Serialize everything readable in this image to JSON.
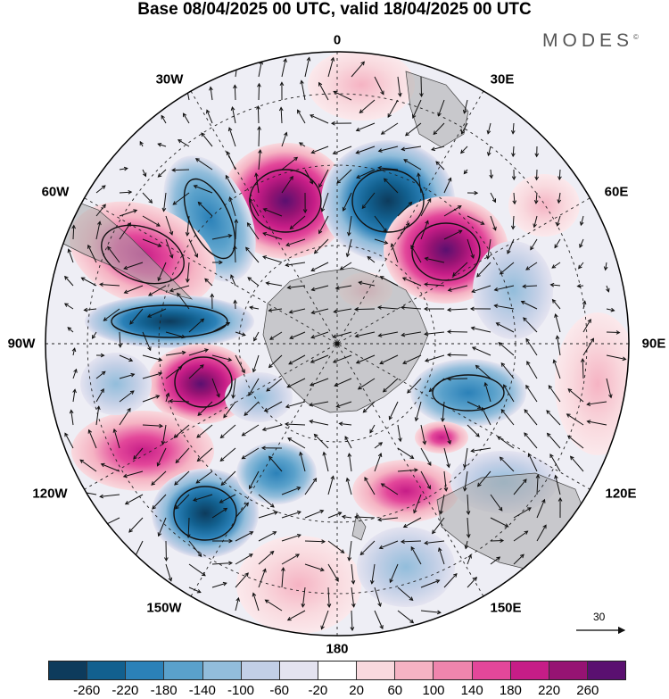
{
  "title": "Base 08/04/2025 00 UTC, valid 18/04/2025 00 UTC",
  "brand": "MODES",
  "brand_mark": "©",
  "longitude_labels": {
    "lon_0": "0",
    "lon_30e": "30E",
    "lon_60e": "60E",
    "lon_90e": "90E",
    "lon_120e": "120E",
    "lon_150e": "150E",
    "lon_180": "180",
    "lon_150w": "150W",
    "lon_120w": "120W",
    "lon_90w": "90W",
    "lon_60w": "60W",
    "lon_30w": "30W"
  },
  "reference_vector": {
    "value": "30"
  },
  "colorbar": {
    "colors": [
      "#0d3b5c",
      "#12608f",
      "#2b81b8",
      "#5aa1cb",
      "#92bddb",
      "#c2cfe6",
      "#e4e3f0",
      "#ffffff",
      "#f9d9de",
      "#f5b3c3",
      "#ef85ad",
      "#e3479a",
      "#c61d87",
      "#961373",
      "#5a1070"
    ],
    "ticks": [
      "-260",
      "-220",
      "-180",
      "-140",
      "-100",
      "-60",
      "-20",
      "20",
      "60",
      "100",
      "140",
      "180",
      "220",
      "260"
    ]
  },
  "colors": {
    "land": "#a9a9a9",
    "grid": "#222222",
    "arrows": "#111111"
  }
}
